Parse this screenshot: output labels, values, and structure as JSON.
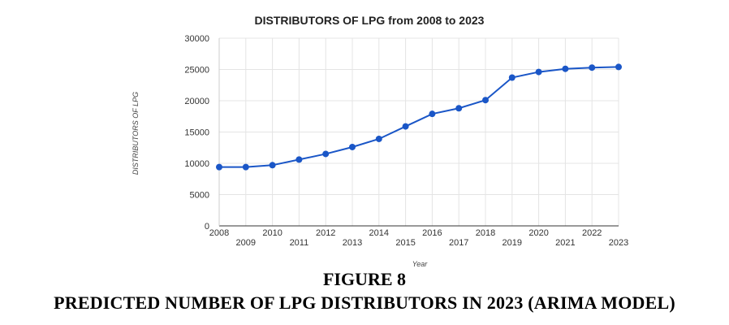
{
  "chart_data": {
    "type": "line",
    "title": "DISTRIBUTORS OF LPG from 2008 to 2023",
    "xlabel": "Year",
    "ylabel": "DISTRIBUTORS OF LPG",
    "x": [
      "2008",
      "2009",
      "2010",
      "2011",
      "2012",
      "2013",
      "2014",
      "2015",
      "2016",
      "2017",
      "2018",
      "2019",
      "2020",
      "2021",
      "2022",
      "2023"
    ],
    "series": [
      {
        "values": [
          9400,
          9400,
          9700,
          10600,
          11500,
          12600,
          13900,
          15900,
          17900,
          18800,
          20100,
          23700,
          24600,
          25100,
          25300,
          25400
        ]
      }
    ],
    "ylim": [
      0,
      30000
    ],
    "yticks": [
      "30000",
      "25000",
      "20000",
      "15000",
      "10000",
      "5000",
      "0"
    ],
    "grid": true,
    "legend": "none",
    "line_color": "#1a56c7",
    "grid_color": "#e4e4e4"
  },
  "figure": {
    "number": "FIGURE 8",
    "caption": "PREDICTED NUMBER OF LPG DISTRIBUTORS IN 2023 (ARIMA MODEL)"
  }
}
